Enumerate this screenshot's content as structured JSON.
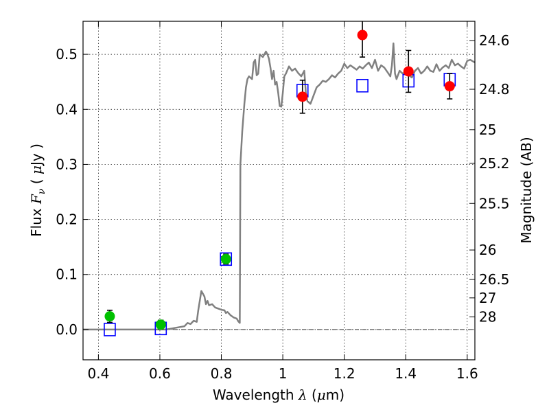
{
  "chart_data": {
    "type": "scatter",
    "xlabel": {
      "prefix": "Wavelength  ",
      "symbol": "λ",
      "unit_open": " (",
      "unit_mu": "μ",
      "unit_close": "m)"
    },
    "ylabel": {
      "prefix": "Flux  ",
      "symbol": "F",
      "subscript": "ν",
      "unit_open": "  ( ",
      "unit_mu": "μ",
      "unit_close": "Jy )"
    },
    "y2label": "Magnitude (AB)",
    "xlim": [
      0.35,
      1.625
    ],
    "ylim": [
      -0.055,
      0.56
    ],
    "grid": true,
    "x_ticks": [
      {
        "value": 0.4,
        "label": "0.4"
      },
      {
        "value": 0.6,
        "label": "0.6"
      },
      {
        "value": 0.8,
        "label": "0.8"
      },
      {
        "value": 1.0,
        "label": "1"
      },
      {
        "value": 1.2,
        "label": "1.2"
      },
      {
        "value": 1.4,
        "label": "1.4"
      },
      {
        "value": 1.6,
        "label": "1.6"
      }
    ],
    "y_ticks": [
      {
        "value": 0.0,
        "label": "0.0"
      },
      {
        "value": 0.1,
        "label": "0.1"
      },
      {
        "value": 0.2,
        "label": "0.2"
      },
      {
        "value": 0.3,
        "label": "0.3"
      },
      {
        "value": 0.4,
        "label": "0.4"
      },
      {
        "value": 0.5,
        "label": "0.5"
      }
    ],
    "mag_ticks": [
      {
        "label": "24.6",
        "flux": 0.5248
      },
      {
        "label": "24.8",
        "flux": 0.4365
      },
      {
        "label": "25",
        "flux": 0.3631
      },
      {
        "label": "25.2",
        "flux": 0.302
      },
      {
        "label": "25.5",
        "flux": 0.2291
      },
      {
        "label": "26",
        "flux": 0.1445
      },
      {
        "label": "26.5",
        "flux": 0.0912
      },
      {
        "label": "27",
        "flux": 0.0575
      },
      {
        "label": "28",
        "flux": 0.0229
      }
    ],
    "series": [
      {
        "name": "model_spectrum",
        "style": "line",
        "color": "#808080",
        "points": [
          [
            0.35,
            0.0
          ],
          [
            0.62,
            0.0
          ],
          [
            0.64,
            0.002
          ],
          [
            0.66,
            0.004
          ],
          [
            0.68,
            0.006
          ],
          [
            0.69,
            0.012
          ],
          [
            0.7,
            0.01
          ],
          [
            0.71,
            0.016
          ],
          [
            0.72,
            0.014
          ],
          [
            0.725,
            0.035
          ],
          [
            0.735,
            0.07
          ],
          [
            0.745,
            0.06
          ],
          [
            0.75,
            0.046
          ],
          [
            0.755,
            0.052
          ],
          [
            0.76,
            0.044
          ],
          [
            0.77,
            0.046
          ],
          [
            0.78,
            0.04
          ],
          [
            0.79,
            0.038
          ],
          [
            0.8,
            0.036
          ],
          [
            0.81,
            0.035
          ],
          [
            0.815,
            0.03
          ],
          [
            0.82,
            0.032
          ],
          [
            0.83,
            0.026
          ],
          [
            0.84,
            0.022
          ],
          [
            0.85,
            0.02
          ],
          [
            0.855,
            0.015
          ],
          [
            0.86,
            0.012
          ],
          [
            0.862,
            0.3
          ],
          [
            0.868,
            0.36
          ],
          [
            0.875,
            0.41
          ],
          [
            0.88,
            0.44
          ],
          [
            0.885,
            0.455
          ],
          [
            0.89,
            0.46
          ],
          [
            0.9,
            0.455
          ],
          [
            0.905,
            0.485
          ],
          [
            0.91,
            0.49
          ],
          [
            0.915,
            0.462
          ],
          [
            0.92,
            0.465
          ],
          [
            0.925,
            0.5
          ],
          [
            0.935,
            0.495
          ],
          [
            0.945,
            0.505
          ],
          [
            0.95,
            0.5
          ],
          [
            0.955,
            0.492
          ],
          [
            0.96,
            0.475
          ],
          [
            0.965,
            0.455
          ],
          [
            0.97,
            0.47
          ],
          [
            0.975,
            0.445
          ],
          [
            0.98,
            0.45
          ],
          [
            0.985,
            0.43
          ],
          [
            0.99,
            0.406
          ],
          [
            0.995,
            0.405
          ],
          [
            1.0,
            0.43
          ],
          [
            1.005,
            0.46
          ],
          [
            1.01,
            0.465
          ],
          [
            1.02,
            0.478
          ],
          [
            1.03,
            0.47
          ],
          [
            1.04,
            0.474
          ],
          [
            1.05,
            0.466
          ],
          [
            1.06,
            0.46
          ],
          [
            1.07,
            0.47
          ],
          [
            1.075,
            0.43
          ],
          [
            1.08,
            0.415
          ],
          [
            1.09,
            0.41
          ],
          [
            1.1,
            0.425
          ],
          [
            1.11,
            0.44
          ],
          [
            1.12,
            0.445
          ],
          [
            1.13,
            0.452
          ],
          [
            1.14,
            0.45
          ],
          [
            1.15,
            0.455
          ],
          [
            1.16,
            0.462
          ],
          [
            1.17,
            0.458
          ],
          [
            1.18,
            0.465
          ],
          [
            1.19,
            0.47
          ],
          [
            1.2,
            0.483
          ],
          [
            1.21,
            0.475
          ],
          [
            1.22,
            0.48
          ],
          [
            1.23,
            0.476
          ],
          [
            1.24,
            0.472
          ],
          [
            1.25,
            0.478
          ],
          [
            1.26,
            0.474
          ],
          [
            1.27,
            0.48
          ],
          [
            1.28,
            0.485
          ],
          [
            1.29,
            0.475
          ],
          [
            1.3,
            0.49
          ],
          [
            1.31,
            0.47
          ],
          [
            1.32,
            0.48
          ],
          [
            1.33,
            0.476
          ],
          [
            1.34,
            0.468
          ],
          [
            1.35,
            0.46
          ],
          [
            1.355,
            0.48
          ],
          [
            1.36,
            0.52
          ],
          [
            1.365,
            0.465
          ],
          [
            1.37,
            0.455
          ],
          [
            1.38,
            0.47
          ],
          [
            1.39,
            0.465
          ],
          [
            1.4,
            0.468
          ],
          [
            1.41,
            0.462
          ],
          [
            1.42,
            0.458
          ],
          [
            1.43,
            0.47
          ],
          [
            1.44,
            0.475
          ],
          [
            1.45,
            0.465
          ],
          [
            1.46,
            0.47
          ],
          [
            1.47,
            0.478
          ],
          [
            1.48,
            0.47
          ],
          [
            1.49,
            0.468
          ],
          [
            1.5,
            0.482
          ],
          [
            1.51,
            0.47
          ],
          [
            1.52,
            0.476
          ],
          [
            1.53,
            0.48
          ],
          [
            1.54,
            0.475
          ],
          [
            1.55,
            0.49
          ],
          [
            1.56,
            0.48
          ],
          [
            1.57,
            0.483
          ],
          [
            1.58,
            0.478
          ],
          [
            1.59,
            0.474
          ],
          [
            1.6,
            0.488
          ],
          [
            1.61,
            0.49
          ],
          [
            1.625,
            0.485
          ]
        ]
      },
      {
        "name": "model_photometry",
        "style": "open_square",
        "color": "#0000ff",
        "points": [
          [
            0.437,
            0.0
          ],
          [
            0.603,
            0.002
          ],
          [
            0.815,
            0.128
          ],
          [
            1.064,
            0.434
          ],
          [
            1.259,
            0.443
          ],
          [
            1.409,
            0.452
          ],
          [
            1.543,
            0.454
          ]
        ]
      },
      {
        "name": "observed_optical",
        "style": "filled_circle",
        "color": "#00c000",
        "points": [
          {
            "x": 0.437,
            "y": 0.024,
            "err": 0.011
          },
          {
            "x": 0.603,
            "y": 0.009,
            "err": 0.008
          },
          {
            "x": 0.815,
            "y": 0.128,
            "err": 0.009
          }
        ]
      },
      {
        "name": "observed_infrared",
        "style": "filled_circle",
        "color": "#ff0000",
        "points": [
          {
            "x": 1.064,
            "y": 0.423,
            "err": 0.03
          },
          {
            "x": 1.259,
            "y": 0.535,
            "err": 0.04
          },
          {
            "x": 1.409,
            "y": 0.469,
            "err": 0.038
          },
          {
            "x": 1.543,
            "y": 0.442,
            "err": 0.023
          }
        ]
      }
    ]
  }
}
